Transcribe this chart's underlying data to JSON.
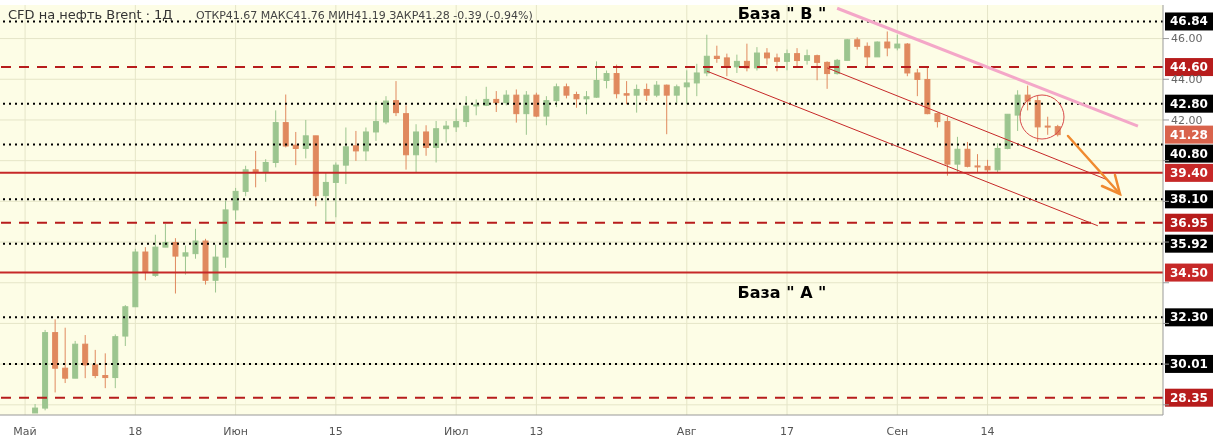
{
  "chart_data": {
    "type": "candlestick",
    "title": "CFD на нефть Brent · 1Д",
    "subtitle": "ОТКР41.67 МАКС41.76 МИН41.19 ЗАКР41.28 -0.39 (-0.94%)",
    "categories": [
      null,
      null,
      "Май",
      null,
      null,
      null,
      null,
      null,
      null,
      null,
      null,
      null,
      null,
      "18",
      null,
      null,
      null,
      null,
      null,
      null,
      null,
      null,
      null,
      "Июн",
      null,
      null,
      null,
      null,
      null,
      null,
      null,
      null,
      null,
      "15",
      null,
      null,
      null,
      null,
      null,
      null,
      null,
      null,
      null,
      null,
      null,
      "Июл",
      null,
      null,
      null,
      null,
      null,
      null,
      null,
      "13",
      null,
      null,
      null,
      null,
      null,
      null,
      null,
      null,
      null,
      null,
      null,
      null,
      null,
      null,
      "Авг",
      null,
      null,
      null,
      null,
      null,
      null,
      null,
      null,
      null,
      "17",
      null,
      null,
      null,
      null,
      null,
      null,
      null,
      null,
      null,
      null,
      "Сен",
      null,
      null,
      null,
      null,
      null,
      null,
      null,
      null,
      "14",
      null,
      null,
      null,
      null,
      null,
      null,
      null,
      null,
      null,
      null,
      null,
      null,
      null,
      null,
      null,
      null,
      null
    ],
    "ohlc": [
      null,
      null,
      null,
      [
        27.6,
        28.04,
        27.6,
        27.84
      ],
      [
        27.84,
        31.68,
        27.73,
        31.55
      ],
      [
        31.55,
        32.2,
        28.61,
        29.8
      ],
      [
        29.8,
        31.79,
        29.07,
        29.31
      ],
      [
        29.31,
        31.14,
        29.31,
        30.98
      ],
      [
        30.98,
        31.43,
        29.31,
        29.96
      ],
      [
        29.96,
        30.7,
        29.31,
        29.44
      ],
      [
        29.44,
        30.53,
        28.82,
        29.34
      ],
      [
        29.34,
        31.46,
        28.82,
        31.35
      ],
      [
        31.38,
        32.9,
        30.89,
        32.82
      ],
      [
        32.82,
        35.67,
        32.82,
        35.51
      ],
      [
        35.51,
        35.75,
        34.12,
        34.53
      ],
      [
        34.36,
        36.36,
        34.29,
        35.75
      ],
      [
        35.75,
        36.89,
        35.75,
        35.98
      ],
      [
        35.98,
        36.19,
        33.47,
        35.31
      ],
      [
        35.31,
        35.83,
        34.4,
        35.47
      ],
      [
        35.43,
        36.65,
        35.18,
        36.05
      ],
      [
        36.05,
        36.16,
        33.91,
        34.12
      ],
      [
        34.12,
        35.87,
        33.52,
        35.26
      ],
      [
        35.26,
        38.03,
        34.73,
        37.58
      ],
      [
        37.58,
        38.66,
        37.09,
        38.49
      ],
      [
        38.49,
        39.75,
        38.25,
        39.55
      ],
      [
        39.55,
        40.48,
        38.69,
        39.42
      ],
      [
        39.42,
        40.07,
        38.96,
        39.91
      ],
      [
        39.91,
        42.47,
        39.67,
        41.87
      ],
      [
        41.87,
        43.25,
        40.65,
        40.72
      ],
      [
        40.76,
        41.41,
        39.78,
        40.6
      ],
      [
        40.6,
        42.0,
        40.11,
        41.22
      ],
      [
        41.22,
        41.22,
        37.76,
        38.28
      ],
      [
        38.28,
        39.42,
        36.94,
        38.93
      ],
      [
        38.93,
        39.91,
        37.22,
        39.78
      ],
      [
        39.78,
        41.63,
        38.85,
        40.68
      ],
      [
        40.73,
        41.46,
        39.99,
        40.48
      ],
      [
        40.48,
        41.63,
        39.99,
        41.41
      ],
      [
        41.41,
        42.93,
        40.97,
        41.92
      ],
      [
        41.9,
        43.17,
        41.79,
        42.93
      ],
      [
        42.95,
        43.91,
        42.19,
        42.36
      ],
      [
        42.31,
        42.72,
        39.56,
        40.29
      ],
      [
        40.29,
        41.79,
        39.42,
        41.41
      ],
      [
        41.41,
        41.74,
        40.24,
        40.65
      ],
      [
        40.65,
        41.95,
        39.91,
        41.57
      ],
      [
        41.57,
        41.95,
        40.89,
        41.7
      ],
      [
        41.66,
        42.56,
        41.41,
        41.92
      ],
      [
        41.92,
        43.17,
        41.66,
        42.68
      ],
      [
        42.72,
        43.01,
        42.23,
        42.74
      ],
      [
        42.72,
        43.63,
        42.68,
        43.01
      ],
      [
        43.01,
        43.42,
        42.39,
        42.85
      ],
      [
        42.85,
        43.46,
        42.72,
        43.22
      ],
      [
        43.22,
        43.5,
        41.87,
        42.31
      ],
      [
        42.31,
        43.42,
        41.27,
        43.22
      ],
      [
        43.22,
        43.34,
        42.14,
        42.19
      ],
      [
        42.19,
        43.17,
        41.74,
        42.95
      ],
      [
        42.95,
        43.79,
        42.63,
        43.63
      ],
      [
        43.63,
        43.79,
        43.06,
        43.22
      ],
      [
        43.25,
        43.39,
        42.6,
        43.04
      ],
      [
        43.04,
        43.42,
        42.28,
        43.14
      ],
      [
        43.12,
        44.88,
        43.09,
        43.94
      ],
      [
        43.94,
        44.43,
        43.55,
        44.28
      ],
      [
        44.28,
        44.72,
        43.06,
        43.29
      ],
      [
        43.29,
        43.91,
        42.77,
        43.22
      ],
      [
        43.22,
        43.74,
        42.36,
        43.5
      ],
      [
        43.5,
        43.79,
        42.93,
        43.22
      ],
      [
        43.22,
        43.91,
        43.12,
        43.71
      ],
      [
        43.71,
        43.74,
        41.3,
        43.22
      ],
      [
        43.22,
        43.74,
        42.85,
        43.63
      ],
      [
        43.63,
        44.44,
        42.77,
        43.82
      ],
      [
        43.82,
        44.76,
        43.17,
        44.31
      ],
      [
        44.31,
        46.19,
        44.15,
        45.13
      ],
      [
        45.13,
        45.65,
        44.81,
        45.02
      ],
      [
        45.05,
        45.26,
        44.15,
        44.61
      ],
      [
        44.61,
        45.21,
        44.31,
        44.88
      ],
      [
        44.88,
        45.75,
        44.39,
        44.56
      ],
      [
        44.56,
        45.58,
        44.43,
        45.29
      ],
      [
        45.29,
        45.53,
        44.72,
        45.05
      ],
      [
        45.05,
        45.26,
        44.39,
        44.88
      ],
      [
        44.88,
        45.46,
        44.44,
        45.26
      ],
      [
        45.26,
        45.53,
        44.59,
        44.92
      ],
      [
        44.93,
        45.46,
        44.72,
        45.16
      ],
      [
        45.16,
        45.21,
        43.95,
        44.83
      ],
      [
        44.83,
        44.88,
        43.53,
        44.28
      ],
      [
        44.28,
        45.0,
        44.23,
        44.93
      ],
      [
        44.93,
        45.98,
        44.92,
        45.94
      ],
      [
        45.94,
        46.06,
        45.46,
        45.62
      ],
      [
        45.62,
        45.81,
        44.64,
        45.1
      ],
      [
        45.1,
        45.86,
        45.1,
        45.83
      ],
      [
        45.83,
        46.35,
        45.13,
        45.54
      ],
      [
        45.54,
        46.19,
        45.42,
        45.73
      ],
      [
        45.73,
        45.78,
        44.15,
        44.31
      ],
      [
        44.31,
        44.51,
        43.17,
        43.99
      ],
      [
        43.99,
        44.56,
        42.28,
        42.31
      ],
      [
        42.31,
        42.36,
        41.63,
        41.92
      ],
      [
        41.92,
        42.16,
        39.26,
        39.83
      ],
      [
        39.83,
        41.17,
        39.42,
        40.56
      ],
      [
        40.56,
        40.92,
        39.67,
        39.72
      ],
      [
        39.74,
        40.32,
        39.39,
        39.72
      ],
      [
        39.72,
        40.04,
        39.4,
        39.55
      ],
      [
        39.55,
        40.86,
        39.4,
        40.6
      ],
      [
        40.6,
        42.28,
        40.56,
        42.28
      ],
      [
        42.24,
        43.46,
        41.46,
        43.22
      ],
      [
        43.22,
        43.69,
        42.47,
        42.93
      ],
      [
        42.95,
        43.22,
        40.92,
        41.66
      ],
      [
        41.7,
        42.16,
        41.27,
        41.66
      ],
      [
        41.67,
        41.76,
        41.19,
        41.28
      ],
      null,
      null,
      null,
      null,
      null,
      null,
      null,
      null,
      null,
      null
    ],
    "colors": [
      null,
      null,
      null,
      "#9cc58f",
      "#9cc58f",
      "#e0895e",
      "#e0895e",
      "#9cc58f",
      "#e0895e",
      "#e0895e",
      "#e0895e",
      "#9cc58f",
      "#9cc58f",
      "#9cc58f",
      "#e0895e",
      "#9cc58f",
      "#9cc58f",
      "#e0895e",
      "#9cc58f",
      "#9cc58f",
      "#e0895e",
      "#9cc58f",
      "#9cc58f",
      "#9cc58f",
      "#9cc58f",
      "#e0895e",
      "#9cc58f",
      "#9cc58f",
      "#e0895e",
      "#e0895e",
      "#9cc58f",
      "#e0895e",
      "#9cc58f",
      "#9cc58f",
      "#9cc58f",
      "#e0895e",
      "#9cc58f",
      "#9cc58f",
      "#9cc58f",
      "#e0895e",
      "#e0895e",
      "#9cc58f",
      "#e0895e",
      "#9cc58f",
      "#9cc58f",
      "#9cc58f",
      "#9cc58f",
      "#9cc58f",
      "#9cc58f",
      "#e0895e",
      "#9cc58f",
      "#e0895e",
      "#9cc58f",
      "#e0895e",
      "#9cc58f",
      "#9cc58f",
      "#e0895e",
      "#e0895e",
      "#9cc58f",
      "#9cc58f",
      "#9cc58f",
      "#e0895e",
      "#e0895e",
      "#9cc58f",
      "#e0895e",
      "#9cc58f",
      "#e0895e",
      "#9cc58f",
      "#9cc58f",
      "#9cc58f",
      "#9cc58f",
      "#e0895e",
      "#e0895e",
      "#9cc58f",
      "#e0895e",
      "#9cc58f",
      "#e0895e",
      "#e0895e",
      "#9cc58f",
      "#e0895e",
      "#9cc58f",
      "#e0895e",
      "#e0895e",
      "#9cc58f",
      "#9cc58f",
      "#e0895e",
      "#e0895e",
      "#9cc58f",
      "#e0895e",
      "#9cc58f",
      "#e0895e",
      "#e0895e",
      "#e0895e",
      "#e0895e",
      "#e0895e",
      "#9cc58f",
      "#e0895e",
      "#e0895e",
      "#e0895e",
      "#9cc58f",
      "#9cc58f",
      "#9cc58f",
      "#e0895e",
      "#e0895e",
      "#e0895e",
      "#e0895e",
      null,
      null,
      null,
      null,
      null,
      null,
      null,
      null,
      null,
      null
    ],
    "series": [
      {
        "type": "line",
        "color": "#f4a7c8",
        "values": [
          null,
          null,
          null,
          null,
          null,
          null,
          null,
          null,
          null,
          null,
          null,
          null,
          null,
          null,
          null,
          null,
          null,
          null,
          null,
          null,
          null,
          null,
          null,
          null,
          null,
          null,
          null,
          null,
          null,
          null,
          null,
          null,
          null,
          null,
          null,
          null,
          null,
          null,
          null,
          null,
          null,
          null,
          null,
          null,
          null,
          null,
          null,
          null,
          null,
          null,
          null,
          null,
          null,
          null,
          null,
          null,
          null,
          null,
          null,
          null,
          null,
          null,
          null,
          null,
          null,
          null,
          null,
          null,
          null,
          null,
          null,
          null,
          null,
          null,
          null,
          null,
          null,
          null,
          null,
          null,
          null,
          null,
          null,
          47.49,
          null,
          null,
          null,
          null,
          null,
          null,
          null,
          null,
          null,
          null,
          null,
          null,
          null,
          null,
          null,
          null,
          null,
          null,
          null,
          null,
          null,
          null,
          null,
          null,
          null,
          null,
          null,
          null,
          null,
          41.7,
          null,
          null
        ]
      },
      {
        "type": "line",
        "color": "#c62828",
        "values": [
          null,
          null,
          null,
          null,
          null,
          null,
          null,
          null,
          null,
          null,
          null,
          null,
          null,
          null,
          null,
          null,
          null,
          null,
          null,
          null,
          null,
          null,
          null,
          null,
          null,
          null,
          null,
          null,
          null,
          null,
          null,
          null,
          null,
          null,
          null,
          null,
          null,
          null,
          null,
          null,
          null,
          null,
          null,
          null,
          null,
          null,
          null,
          null,
          null,
          null,
          null,
          null,
          null,
          null,
          null,
          null,
          null,
          null,
          null,
          null,
          null,
          null,
          null,
          null,
          null,
          null,
          null,
          null,
          null,
          null,
          null,
          null,
          null,
          null,
          null,
          null,
          null,
          null,
          null,
          null,
          null,
          null,
          44.56,
          null,
          null,
          null,
          null,
          null,
          null,
          null,
          null,
          null,
          null,
          null,
          null,
          null,
          null,
          null,
          null,
          null,
          null,
          null,
          null,
          null,
          null,
          null,
          null,
          null,
          null,
          null,
          39.05,
          null,
          null,
          null,
          null,
          null
        ]
      },
      {
        "type": "line",
        "color": "#c62828",
        "values": [
          null,
          null,
          null,
          null,
          null,
          null,
          null,
          null,
          null,
          null,
          null,
          null,
          null,
          null,
          null,
          null,
          null,
          null,
          null,
          null,
          null,
          null,
          null,
          null,
          null,
          null,
          null,
          null,
          null,
          null,
          null,
          null,
          null,
          null,
          null,
          null,
          null,
          null,
          null,
          null,
          null,
          null,
          null,
          null,
          null,
          null,
          null,
          null,
          null,
          null,
          null,
          null,
          null,
          null,
          null,
          null,
          null,
          null,
          null,
          null,
          null,
          null,
          null,
          null,
          null,
          null,
          null,
          null,
          null,
          null,
          44.4,
          null,
          null,
          null,
          null,
          null,
          null,
          null,
          null,
          null,
          null,
          null,
          null,
          null,
          null,
          null,
          null,
          null,
          null,
          null,
          null,
          null,
          null,
          null,
          null,
          null,
          null,
          null,
          null,
          null,
          null,
          null,
          null,
          null,
          null,
          null,
          null,
          null,
          null,
          36.8,
          null,
          null,
          null,
          null,
          null,
          null
        ]
      }
    ],
    "ylim": [
      27.5,
      47.65
    ],
    "yticks": [
      {
        "value": 28,
        "label": null
      },
      {
        "value": 30,
        "label": null
      },
      {
        "value": 32,
        "label": null
      },
      {
        "value": 34,
        "label": null
      },
      {
        "value": 36,
        "label": null
      },
      {
        "value": 38,
        "label": null
      },
      {
        "value": 40,
        "label": null
      },
      {
        "value": 42,
        "label": "42.00"
      },
      {
        "value": 44,
        "label": "44.00"
      },
      {
        "value": 46,
        "label": "46.00"
      }
    ],
    "grid": true,
    "ref_lines": [
      {
        "axis": "y",
        "value": 46.84,
        "label": "46.84",
        "color": "#000000",
        "line_style": "dotted"
      },
      {
        "axis": "y",
        "value": 44.6,
        "label": "44.60",
        "color": "#b71c1c",
        "line_style": "dashed"
      },
      {
        "axis": "y",
        "value": 42.8,
        "label": "42.80",
        "color": "#000000",
        "line_style": "dotted"
      },
      {
        "axis": "y",
        "value": 40.8,
        "label": "40.80",
        "color": "#000000",
        "line_style": "dotted"
      },
      {
        "axis": "y",
        "value": 39.4,
        "label": "39.40",
        "color": "#c62828",
        "line_style": "solid"
      },
      {
        "axis": "y",
        "value": 38.1,
        "label": "38.10",
        "color": "#000000",
        "line_style": "dotted"
      },
      {
        "axis": "y",
        "value": 36.95,
        "label": "36.95",
        "color": "#b71c1c",
        "line_style": "dashed"
      },
      {
        "axis": "y",
        "value": 35.92,
        "label": "35.92",
        "color": "#000000",
        "line_style": "dotted"
      },
      {
        "axis": "y",
        "value": 34.5,
        "label": "34.50",
        "color": "#c62828",
        "line_style": "solid"
      },
      {
        "axis": "y",
        "value": 32.3,
        "label": "32.30",
        "color": "#000000",
        "line_style": "dotted"
      },
      {
        "axis": "y",
        "value": 30.01,
        "label": "30.01",
        "color": "#000000",
        "line_style": "dotted"
      },
      {
        "axis": "y",
        "value": 28.35,
        "label": "28.35",
        "color": "#b71c1c",
        "line_style": "dashed"
      }
    ],
    "annotations": [
      "База \" В \"",
      "База \" А \"",
      "41.28"
    ]
  }
}
